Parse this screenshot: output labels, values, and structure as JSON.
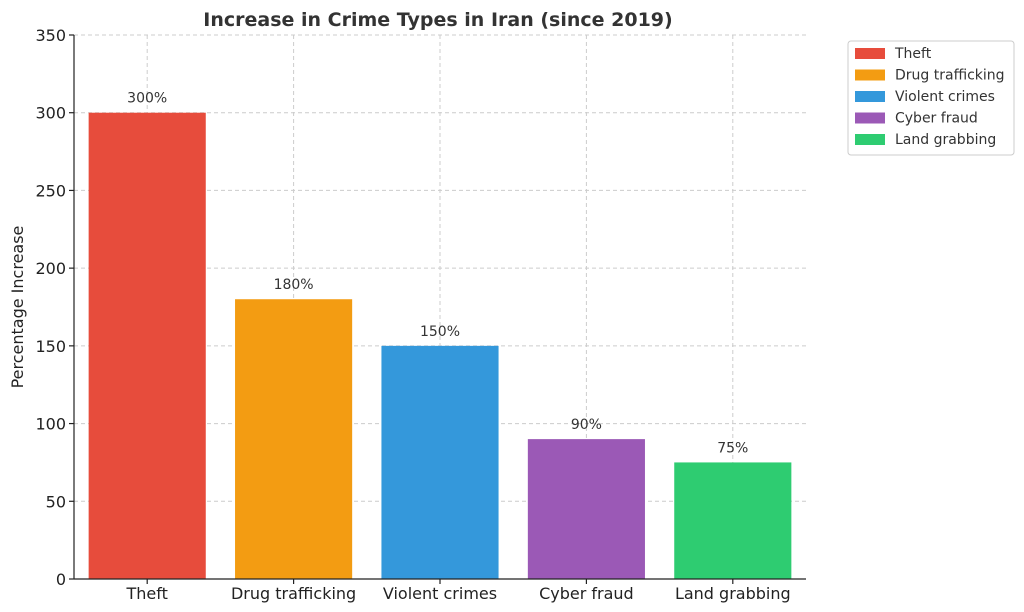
{
  "chart_data": {
    "type": "bar",
    "title": "Increase in Crime Types in Iran (since 2019)",
    "xlabel": "",
    "ylabel": "Percentage Increase",
    "ylim": [
      0,
      350
    ],
    "yticks": [
      0,
      50,
      100,
      150,
      200,
      250,
      300,
      350
    ],
    "grid": true,
    "legend_position": "outside-top-right",
    "categories": [
      "Theft",
      "Drug trafficking",
      "Violent crimes",
      "Cyber fraud",
      "Land grabbing"
    ],
    "values": [
      300,
      180,
      150,
      90,
      75
    ],
    "data_labels": [
      "300%",
      "180%",
      "150%",
      "90%",
      "75%"
    ],
    "colors": [
      "#e74c3c",
      "#f39c12",
      "#3498db",
      "#9b59b6",
      "#2ecc71"
    ],
    "legend": [
      "Theft",
      "Drug trafficking",
      "Violent crimes",
      "Cyber fraud",
      "Land grabbing"
    ]
  }
}
